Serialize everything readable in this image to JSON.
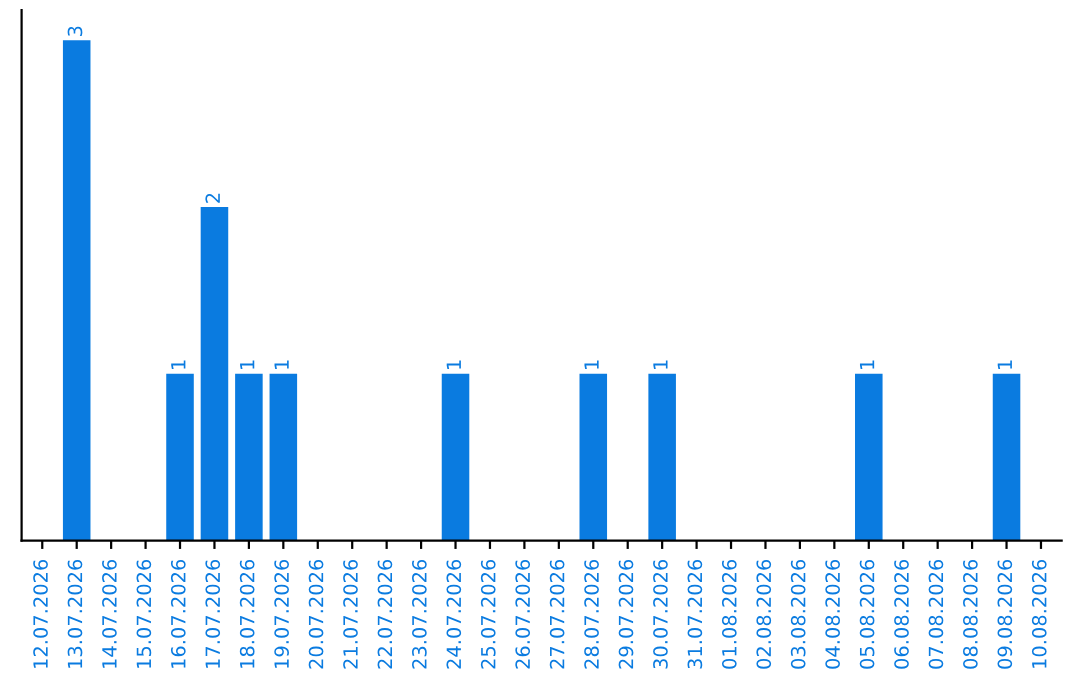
{
  "chart_data": {
    "type": "bar",
    "categories": [
      "12.07.2026",
      "13.07.2026",
      "14.07.2026",
      "15.07.2026",
      "16.07.2026",
      "17.07.2026",
      "18.07.2026",
      "19.07.2026",
      "20.07.2026",
      "21.07.2026",
      "22.07.2026",
      "23.07.2026",
      "24.07.2026",
      "25.07.2026",
      "26.07.2026",
      "27.07.2026",
      "28.07.2026",
      "29.07.2026",
      "30.07.2026",
      "31.07.2026",
      "01.08.2026",
      "02.08.2026",
      "03.08.2026",
      "04.08.2026",
      "05.08.2026",
      "06.08.2026",
      "07.08.2026",
      "08.08.2026",
      "09.08.2026",
      "10.08.2026"
    ],
    "values": [
      0,
      3,
      0,
      0,
      1,
      2,
      1,
      1,
      0,
      0,
      0,
      0,
      1,
      0,
      0,
      0,
      1,
      0,
      1,
      0,
      0,
      0,
      0,
      0,
      1,
      0,
      0,
      0,
      1,
      0
    ],
    "color": "#0a7be0",
    "value_labels": [
      null,
      "3",
      null,
      null,
      "1",
      "2",
      "1",
      "1",
      null,
      null,
      null,
      null,
      "1",
      null,
      null,
      null,
      "1",
      null,
      "1",
      null,
      null,
      null,
      null,
      null,
      "1",
      null,
      null,
      null,
      "1",
      null
    ],
    "tick_labels": "x",
    "grid": false,
    "legend": false
  }
}
